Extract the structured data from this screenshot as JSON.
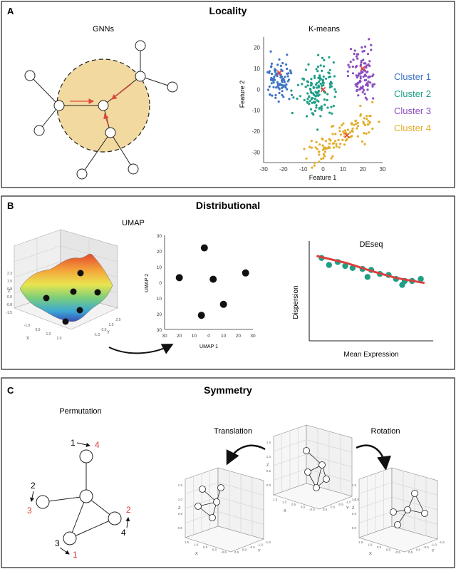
{
  "panels": {
    "a": {
      "letter": "A",
      "title": "Locality",
      "gnn": {
        "subtitle": "GNNs"
      },
      "kmeans": {
        "subtitle": "K-means",
        "xlabel": "Feature 1",
        "ylabel": "Feature 2",
        "x_ticks": [
          "-30",
          "-20",
          "-10",
          "0",
          "10",
          "20",
          "30"
        ],
        "y_ticks": [
          "20",
          "10",
          "0",
          "-10",
          "-20",
          "-30"
        ],
        "legend": [
          {
            "label": "Cluster 1",
            "color": "#3f74c4"
          },
          {
            "label": "Cluster 2",
            "color": "#1e9e87"
          },
          {
            "label": "Cluster 3",
            "color": "#8a4dbf"
          },
          {
            "label": "Cluster 4",
            "color": "#e3ad2a"
          }
        ],
        "centroid_color": "#e0483e"
      }
    },
    "b": {
      "letter": "B",
      "title": "Distributional",
      "surface": {
        "subtitle": "UMAP",
        "z_axis_label": "Z",
        "x_axis_label": "X",
        "y_axis_label": "Y",
        "z_ticks": [
          "2.3",
          "1.5",
          "0.8",
          "0.0",
          "-0.8",
          "-1.5"
        ],
        "x_ticks": [
          "-1.0",
          "0.0",
          "1.0",
          "2.0"
        ],
        "y_ticks": [
          "2.0",
          "1.0",
          "0.0",
          "-1.0"
        ]
      },
      "umap": {
        "xlabel": "UMAP 1",
        "ylabel": "UMAP 2",
        "x_ticks": [
          "30",
          "20",
          "10",
          "0",
          "10",
          "20",
          "30"
        ],
        "y_ticks": [
          "30",
          "20",
          "10",
          "0",
          "10",
          "20",
          "30"
        ]
      },
      "deseq": {
        "subtitle": "DEseq",
        "xlabel": "Mean Expression",
        "ylabel": "Dispersion",
        "point_color": "#1f9e84",
        "trend_color": "#d94040"
      }
    },
    "c": {
      "letter": "C",
      "title": "Symmetry",
      "permutation": {
        "subtitle": "Permutation",
        "labels": [
          {
            "old": "1",
            "new": "4"
          },
          {
            "old": "2",
            "new": "3"
          },
          {
            "old": "4",
            "new": "2"
          },
          {
            "old": "3",
            "new": "1"
          }
        ],
        "new_label_color": "#d63a34"
      },
      "translation_label": "Translation",
      "rotation_label": "Rotation",
      "cube": {
        "z_label": "Z",
        "x_label": "X",
        "y_label": "Y",
        "ticks": [
          "1.5",
          "1.0",
          "0.5",
          "0.0",
          "-0.5",
          "-1.0",
          "-1.5"
        ]
      }
    }
  },
  "chart_data": [
    {
      "type": "scatter",
      "title": "K-means",
      "xlabel": "Feature 1",
      "ylabel": "Feature 2",
      "xlim": [
        -30,
        30
      ],
      "ylim": [
        -35,
        25
      ],
      "series": [
        {
          "name": "Cluster 1",
          "color": "#3f74c4",
          "cx": -22,
          "cy": 5,
          "sx": 4,
          "sy": 6,
          "n": 90,
          "points": [
            [
              -22,
              18
            ],
            [
              -21,
              13
            ],
            [
              -24,
              5
            ],
            [
              -20,
              0
            ],
            [
              -23,
              -5
            ]
          ]
        },
        {
          "name": "Cluster 2",
          "color": "#1e9e87",
          "cx": -3,
          "cy": 0,
          "sx": 6,
          "sy": 8,
          "n": 140,
          "points": [
            [
              -6,
              15
            ],
            [
              -2,
              8
            ],
            [
              0,
              0
            ],
            [
              -8,
              -5
            ],
            [
              2,
              -12
            ]
          ]
        },
        {
          "name": "Cluster 3",
          "color": "#8a4dbf",
          "cx": 20,
          "cy": 8,
          "sx": 4,
          "sy": 8,
          "n": 100,
          "points": [
            [
              20,
              20
            ],
            [
              22,
              12
            ],
            [
              18,
              5
            ],
            [
              24,
              0
            ]
          ]
        },
        {
          "name": "Cluster 4",
          "color": "#e3ad2a",
          "cx": 8,
          "cy": -24,
          "sx": 10,
          "sy": 5,
          "n": 110,
          "points": [
            [
              -6,
              -30
            ],
            [
              5,
              -22
            ],
            [
              15,
              -18
            ],
            [
              22,
              -15
            ]
          ]
        }
      ],
      "centroids": [
        [
          -22,
          8
        ],
        [
          0,
          0
        ],
        [
          20,
          10
        ],
        [
          12,
          -22
        ]
      ]
    },
    {
      "type": "scatter",
      "title": "UMAP",
      "xlabel": "UMAP 1",
      "ylabel": "UMAP 2",
      "xlim": [
        -30,
        30
      ],
      "ylim": [
        -30,
        30
      ],
      "points": [
        [
          -3,
          22
        ],
        [
          -20,
          3
        ],
        [
          3,
          2
        ],
        [
          25,
          6
        ],
        [
          10,
          -14
        ],
        [
          -5,
          -21
        ]
      ]
    },
    {
      "type": "scatter",
      "title": "DEseq",
      "xlabel": "Mean Expression",
      "ylabel": "Dispersion",
      "xlim": [
        0,
        10
      ],
      "ylim": [
        0,
        10
      ],
      "points": [
        [
          1,
          8.3
        ],
        [
          1.6,
          7.6
        ],
        [
          2.3,
          7.9
        ],
        [
          2.9,
          7.5
        ],
        [
          3.5,
          7.3
        ],
        [
          4.3,
          7.2
        ],
        [
          5.0,
          7.1
        ],
        [
          4.7,
          6.4
        ],
        [
          5.7,
          6.7
        ],
        [
          6.4,
          6.6
        ],
        [
          7.0,
          6.2
        ],
        [
          7.7,
          6.0
        ],
        [
          8.3,
          6.0
        ],
        [
          9.0,
          6.2
        ],
        [
          7.5,
          5.6
        ]
      ],
      "trend": [
        [
          0.6,
          8.5
        ],
        [
          3,
          7.8
        ],
        [
          5,
          7.0
        ],
        [
          7,
          6.3
        ],
        [
          9.3,
          5.8
        ]
      ]
    }
  ]
}
